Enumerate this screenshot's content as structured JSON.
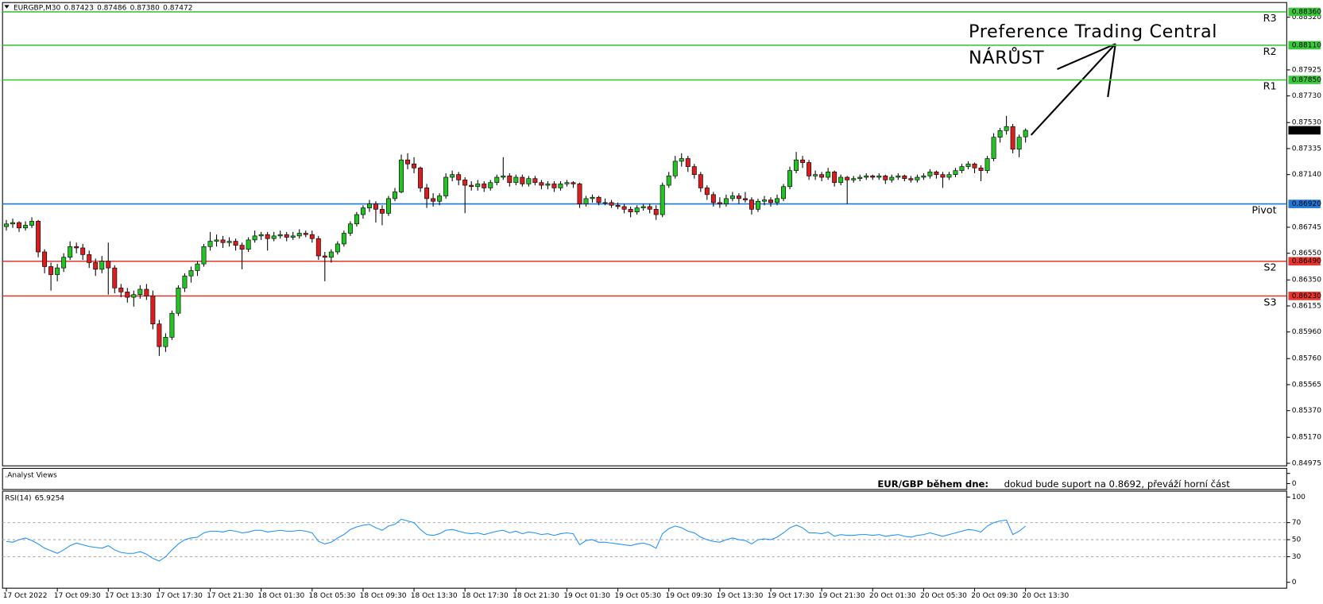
{
  "chart_data": {
    "type": "candlestick",
    "symbol": "EURGBP,M30",
    "header_prices": [
      "0.87423",
      "0.87486",
      "0.87380",
      "0.87472"
    ],
    "up_color": "#22c322",
    "down_color": "#d81e1e",
    "xlim": [
      -0.6,
      201
    ],
    "xticks": [
      {
        "value": 0,
        "label": "17 Oct 2022"
      },
      {
        "value": 8,
        "label": "17 Oct 09:30"
      },
      {
        "value": 16,
        "label": "17 Oct 13:30"
      },
      {
        "value": 24,
        "label": "17 Oct 17:30"
      },
      {
        "value": 32,
        "label": "17 Oct 21:30"
      },
      {
        "value": 40,
        "label": "18 Oct 01:30"
      },
      {
        "value": 48,
        "label": "18 Oct 05:30"
      },
      {
        "value": 56,
        "label": "18 Oct 09:30"
      },
      {
        "value": 64,
        "label": "18 Oct 13:30"
      },
      {
        "value": 72,
        "label": "18 Oct 17:30"
      },
      {
        "value": 80,
        "label": "18 Oct 21:30"
      },
      {
        "value": 88,
        "label": "19 Oct 01:30"
      },
      {
        "value": 96,
        "label": "19 Oct 05:30"
      },
      {
        "value": 104,
        "label": "19 Oct 09:30"
      },
      {
        "value": 112,
        "label": "19 Oct 13:30"
      },
      {
        "value": 120,
        "label": "19 Oct 17:30"
      },
      {
        "value": 128,
        "label": "19 Oct 21:30"
      },
      {
        "value": 136,
        "label": "20 Oct 01:30"
      },
      {
        "value": 144,
        "label": "20 Oct 05:30"
      },
      {
        "value": 152,
        "label": "20 Oct 09:30"
      },
      {
        "value": 160,
        "label": "20 Oct 13:30"
      }
    ],
    "ylim": [
      0.84956,
      0.8843
    ],
    "yticks": [
      {
        "value": 0.8832,
        "label": "0.88320"
      },
      0.87925,
      {
        "value": 0.8773,
        "label": "0.87730"
      },
      {
        "value": 0.8753,
        "label": "0.87530"
      },
      0.87335,
      {
        "value": 0.8714,
        "label": "0.87140"
      },
      0.86745,
      {
        "value": 0.8655,
        "label": "0.86550"
      },
      {
        "value": 0.8635,
        "label": "0.86350"
      },
      0.86155,
      {
        "value": 0.8596,
        "label": "0.85960"
      },
      {
        "value": 0.8576,
        "label": "0.85760"
      },
      0.85565,
      {
        "value": 0.8537,
        "label": "0.85370"
      },
      {
        "value": 0.8517,
        "label": "0.85170"
      },
      0.84975
    ],
    "levels": [
      {
        "name": "R3",
        "value": 0.8836,
        "label": "0.88360",
        "color": "#3cc83c"
      },
      {
        "name": "R2",
        "value": 0.8811,
        "label": "0.88110",
        "color": "#3cc83c"
      },
      {
        "name": "R1",
        "value": 0.8785,
        "label": "0.87850",
        "color": "#3cc83c"
      },
      {
        "name": "Pivot",
        "value": 0.8692,
        "label": "0.86920",
        "color": "#1e78d7"
      },
      {
        "name": "S2",
        "value": 0.8649,
        "label": "0.86490",
        "color": "#e8352e"
      },
      {
        "name": "S3",
        "value": 0.8623,
        "label": "0.86230",
        "color": "#e8352e"
      }
    ],
    "current_price": 0.87472,
    "annotation": [
      "Preference Trading Central",
      "NÁRŮST"
    ],
    "annotation_color": "#3cc83c",
    "ohlc": [
      [
        0.8675,
        0.868,
        0.8672,
        0.8677
      ],
      [
        0.8677,
        0.8681,
        0.8674,
        0.8678
      ],
      [
        0.8678,
        0.8679,
        0.8671,
        0.8674
      ],
      [
        0.8674,
        0.8679,
        0.8672,
        0.8676
      ],
      [
        0.8676,
        0.8682,
        0.8674,
        0.8679
      ],
      [
        0.8679,
        0.868,
        0.8652,
        0.8656
      ],
      [
        0.8656,
        0.8658,
        0.864,
        0.8645
      ],
      [
        0.8645,
        0.8648,
        0.8627,
        0.8639
      ],
      [
        0.8639,
        0.8647,
        0.8634,
        0.8644
      ],
      [
        0.8644,
        0.8655,
        0.8641,
        0.8652
      ],
      [
        0.8652,
        0.8664,
        0.865,
        0.866
      ],
      [
        0.866,
        0.8663,
        0.8655,
        0.8659
      ],
      [
        0.8659,
        0.8662,
        0.865,
        0.8654
      ],
      [
        0.8654,
        0.8657,
        0.8644,
        0.8648
      ],
      [
        0.8648,
        0.8651,
        0.8638,
        0.8643
      ],
      [
        0.8643,
        0.8653,
        0.864,
        0.8649
      ],
      [
        0.8649,
        0.8663,
        0.8624,
        0.8644
      ],
      [
        0.8644,
        0.8646,
        0.8625,
        0.8629
      ],
      [
        0.8629,
        0.8632,
        0.8622,
        0.8626
      ],
      [
        0.8626,
        0.8629,
        0.8618,
        0.8622
      ],
      [
        0.8622,
        0.8627,
        0.8615,
        0.8624
      ],
      [
        0.8624,
        0.8631,
        0.8621,
        0.8628
      ],
      [
        0.8628,
        0.8632,
        0.862,
        0.8623
      ],
      [
        0.8623,
        0.8627,
        0.8598,
        0.8602
      ],
      [
        0.8602,
        0.8605,
        0.8578,
        0.8585
      ],
      [
        0.8585,
        0.8595,
        0.8581,
        0.8592
      ],
      [
        0.8592,
        0.8612,
        0.859,
        0.861
      ],
      [
        0.861,
        0.8631,
        0.8608,
        0.8629
      ],
      [
        0.8629,
        0.864,
        0.8626,
        0.8638
      ],
      [
        0.8638,
        0.8645,
        0.8633,
        0.8642
      ],
      [
        0.8642,
        0.8649,
        0.8638,
        0.8647
      ],
      [
        0.8647,
        0.8662,
        0.8645,
        0.866
      ],
      [
        0.866,
        0.8671,
        0.8657,
        0.8664
      ],
      [
        0.8664,
        0.8669,
        0.866,
        0.8665
      ],
      [
        0.8665,
        0.8668,
        0.8659,
        0.8663
      ],
      [
        0.8663,
        0.8667,
        0.866,
        0.8664
      ],
      [
        0.8664,
        0.8666,
        0.8657,
        0.8661
      ],
      [
        0.8661,
        0.8663,
        0.8643,
        0.8658
      ],
      [
        0.8658,
        0.8667,
        0.8656,
        0.8665
      ],
      [
        0.8665,
        0.8672,
        0.8663,
        0.8668
      ],
      [
        0.8668,
        0.8671,
        0.8665,
        0.8669
      ],
      [
        0.8669,
        0.8671,
        0.8657,
        0.8666
      ],
      [
        0.8666,
        0.8671,
        0.8664,
        0.8668
      ],
      [
        0.8668,
        0.8672,
        0.8666,
        0.8669
      ],
      [
        0.8669,
        0.8671,
        0.8664,
        0.8667
      ],
      [
        0.8667,
        0.8671,
        0.8665,
        0.8668
      ],
      [
        0.8668,
        0.8673,
        0.8666,
        0.867
      ],
      [
        0.867,
        0.8672,
        0.8667,
        0.8669
      ],
      [
        0.8669,
        0.8672,
        0.8663,
        0.8666
      ],
      [
        0.8666,
        0.8668,
        0.865,
        0.8653
      ],
      [
        0.8653,
        0.8656,
        0.8634,
        0.8652
      ],
      [
        0.8652,
        0.8658,
        0.8648,
        0.8656
      ],
      [
        0.8656,
        0.8664,
        0.8654,
        0.8662
      ],
      [
        0.8662,
        0.8672,
        0.866,
        0.867
      ],
      [
        0.867,
        0.8679,
        0.8668,
        0.8677
      ],
      [
        0.8677,
        0.8686,
        0.8675,
        0.8684
      ],
      [
        0.8684,
        0.8691,
        0.8681,
        0.8689
      ],
      [
        0.8689,
        0.8695,
        0.8686,
        0.8692
      ],
      [
        0.8692,
        0.8694,
        0.8678,
        0.8688
      ],
      [
        0.8688,
        0.8691,
        0.8676,
        0.8685
      ],
      [
        0.8685,
        0.8698,
        0.8683,
        0.8696
      ],
      [
        0.8696,
        0.8704,
        0.8694,
        0.8701
      ],
      [
        0.8701,
        0.8729,
        0.87,
        0.8725
      ],
      [
        0.8725,
        0.873,
        0.8718,
        0.8722
      ],
      [
        0.8722,
        0.8727,
        0.8715,
        0.8719
      ],
      [
        0.8719,
        0.872,
        0.8701,
        0.8704
      ],
      [
        0.8704,
        0.8707,
        0.8689,
        0.8696
      ],
      [
        0.8696,
        0.87,
        0.869,
        0.8694
      ],
      [
        0.8694,
        0.87,
        0.8691,
        0.8698
      ],
      [
        0.8698,
        0.8715,
        0.8696,
        0.8712
      ],
      [
        0.8712,
        0.8717,
        0.8709,
        0.8714
      ],
      [
        0.8714,
        0.8716,
        0.8706,
        0.871
      ],
      [
        0.871,
        0.8712,
        0.8685,
        0.8706
      ],
      [
        0.8706,
        0.8709,
        0.8702,
        0.8705
      ],
      [
        0.8705,
        0.871,
        0.8702,
        0.8707
      ],
      [
        0.8707,
        0.8709,
        0.8701,
        0.8704
      ],
      [
        0.8704,
        0.871,
        0.8702,
        0.8708
      ],
      [
        0.8708,
        0.8714,
        0.8706,
        0.8712
      ],
      [
        0.8712,
        0.8727,
        0.871,
        0.8713
      ],
      [
        0.8713,
        0.8715,
        0.8705,
        0.8708
      ],
      [
        0.8708,
        0.8714,
        0.8706,
        0.8712
      ],
      [
        0.8712,
        0.8714,
        0.8705,
        0.8707
      ],
      [
        0.8707,
        0.8713,
        0.8705,
        0.8711
      ],
      [
        0.8711,
        0.8713,
        0.8706,
        0.8708
      ],
      [
        0.8708,
        0.871,
        0.8703,
        0.8706
      ],
      [
        0.8706,
        0.8709,
        0.8703,
        0.8707
      ],
      [
        0.8707,
        0.8709,
        0.8701,
        0.8704
      ],
      [
        0.8704,
        0.8709,
        0.8702,
        0.8707
      ],
      [
        0.8707,
        0.871,
        0.8705,
        0.8708
      ],
      [
        0.8708,
        0.8709,
        0.8704,
        0.8707
      ],
      [
        0.8707,
        0.8708,
        0.8689,
        0.8692
      ],
      [
        0.8692,
        0.8698,
        0.869,
        0.8696
      ],
      [
        0.8696,
        0.8699,
        0.8693,
        0.8697
      ],
      [
        0.8697,
        0.8698,
        0.8691,
        0.8693
      ],
      [
        0.8693,
        0.8696,
        0.8691,
        0.8693
      ],
      [
        0.8693,
        0.8695,
        0.8689,
        0.8691
      ],
      [
        0.8691,
        0.8693,
        0.8688,
        0.869
      ],
      [
        0.869,
        0.8692,
        0.8685,
        0.8688
      ],
      [
        0.8688,
        0.869,
        0.8682,
        0.8686
      ],
      [
        0.8686,
        0.8691,
        0.8684,
        0.8689
      ],
      [
        0.8689,
        0.8692,
        0.8687,
        0.869
      ],
      [
        0.869,
        0.8692,
        0.8685,
        0.8688
      ],
      [
        0.8688,
        0.8691,
        0.868,
        0.8684
      ],
      [
        0.8684,
        0.8708,
        0.8682,
        0.8706
      ],
      [
        0.8706,
        0.8716,
        0.8704,
        0.8713
      ],
      [
        0.8713,
        0.8728,
        0.8711,
        0.8724
      ],
      [
        0.8724,
        0.873,
        0.872,
        0.8726
      ],
      [
        0.8726,
        0.8728,
        0.8716,
        0.872
      ],
      [
        0.872,
        0.8722,
        0.8711,
        0.8714
      ],
      [
        0.8714,
        0.8716,
        0.8701,
        0.8704
      ],
      [
        0.8704,
        0.8706,
        0.8695,
        0.8699
      ],
      [
        0.8699,
        0.8701,
        0.869,
        0.8693
      ],
      [
        0.8693,
        0.8697,
        0.8689,
        0.8692
      ],
      [
        0.8692,
        0.8699,
        0.869,
        0.8696
      ],
      [
        0.8696,
        0.8701,
        0.8694,
        0.8698
      ],
      [
        0.8698,
        0.87,
        0.8692,
        0.8696
      ],
      [
        0.8696,
        0.8701,
        0.8693,
        0.8695
      ],
      [
        0.8695,
        0.8697,
        0.8684,
        0.8688
      ],
      [
        0.8688,
        0.8696,
        0.8686,
        0.8694
      ],
      [
        0.8694,
        0.8698,
        0.8691,
        0.8695
      ],
      [
        0.8695,
        0.8697,
        0.869,
        0.8693
      ],
      [
        0.8693,
        0.8699,
        0.8691,
        0.8696
      ],
      [
        0.8696,
        0.8707,
        0.8694,
        0.8705
      ],
      [
        0.8705,
        0.872,
        0.8703,
        0.8717
      ],
      [
        0.8717,
        0.8731,
        0.8715,
        0.8725
      ],
      [
        0.8725,
        0.8728,
        0.8719,
        0.8723
      ],
      [
        0.8723,
        0.8725,
        0.871,
        0.8713
      ],
      [
        0.8713,
        0.8717,
        0.871,
        0.8714
      ],
      [
        0.8714,
        0.8716,
        0.8709,
        0.8712
      ],
      [
        0.8712,
        0.8719,
        0.871,
        0.8716
      ],
      [
        0.8716,
        0.8717,
        0.8705,
        0.8708
      ],
      [
        0.8708,
        0.8714,
        0.8706,
        0.8712
      ],
      [
        0.8712,
        0.8713,
        0.8692,
        0.871
      ],
      [
        0.871,
        0.8713,
        0.8708,
        0.8711
      ],
      [
        0.8711,
        0.8714,
        0.8709,
        0.8712
      ],
      [
        0.8712,
        0.8715,
        0.871,
        0.8713
      ],
      [
        0.8713,
        0.8714,
        0.871,
        0.8712
      ],
      [
        0.8712,
        0.8715,
        0.871,
        0.8713
      ],
      [
        0.8713,
        0.8714,
        0.8707,
        0.871
      ],
      [
        0.871,
        0.8714,
        0.8708,
        0.8712
      ],
      [
        0.8712,
        0.8715,
        0.871,
        0.8713
      ],
      [
        0.8713,
        0.8714,
        0.8709,
        0.8711
      ],
      [
        0.8711,
        0.8713,
        0.8708,
        0.871
      ],
      [
        0.871,
        0.8714,
        0.8708,
        0.8712
      ],
      [
        0.8712,
        0.8715,
        0.871,
        0.8713
      ],
      [
        0.8713,
        0.8718,
        0.8711,
        0.8716
      ],
      [
        0.8716,
        0.8717,
        0.8711,
        0.8714
      ],
      [
        0.8714,
        0.8716,
        0.8704,
        0.8712
      ],
      [
        0.8712,
        0.8716,
        0.871,
        0.8714
      ],
      [
        0.8714,
        0.8719,
        0.8712,
        0.8717
      ],
      [
        0.8717,
        0.8722,
        0.8715,
        0.872
      ],
      [
        0.872,
        0.8724,
        0.8718,
        0.8722
      ],
      [
        0.8722,
        0.8723,
        0.8715,
        0.8719
      ],
      [
        0.8719,
        0.8721,
        0.8709,
        0.8717
      ],
      [
        0.8717,
        0.8728,
        0.8715,
        0.8726
      ],
      [
        0.8726,
        0.8745,
        0.8724,
        0.8742
      ],
      [
        0.8742,
        0.8749,
        0.8738,
        0.8747
      ],
      [
        0.8747,
        0.8758,
        0.8744,
        0.875
      ],
      [
        0.875,
        0.8752,
        0.873,
        0.8733
      ],
      [
        0.8733,
        0.8744,
        0.8727,
        0.8742
      ],
      [
        0.87423,
        0.87486,
        0.8738,
        0.87472
      ]
    ],
    "analyst": {
      "name": ".Analyst Views",
      "yticks": [
        0
      ],
      "heading": "EUR/GBP během dne:",
      "text": "dokud bude suport na 0.8692, převáží horní část",
      "color": "#ffc000"
    },
    "rsi": {
      "type": "line",
      "name": "RSI(14)",
      "color": "#1e90ff",
      "ylim": [
        0,
        100
      ],
      "yticks": [
        100,
        70,
        50,
        30,
        0
      ],
      "levels": [
        70,
        50,
        30
      ],
      "values": [
        48,
        47,
        50,
        52,
        49,
        45,
        40,
        37,
        34,
        38,
        43,
        46,
        44,
        42,
        41,
        40,
        43,
        38,
        35,
        34,
        34,
        36,
        33,
        28,
        25,
        30,
        38,
        45,
        50,
        52,
        53,
        58,
        60,
        60,
        59,
        61,
        60,
        58,
        59,
        61,
        61,
        59,
        60,
        61,
        60,
        60,
        61,
        60,
        58,
        48,
        45,
        47,
        52,
        56,
        62,
        65,
        67,
        68,
        64,
        61,
        66,
        68,
        74,
        72,
        70,
        62,
        56,
        55,
        57,
        61,
        62,
        60,
        58,
        57,
        58,
        56,
        58,
        60,
        61,
        58,
        60,
        57,
        59,
        58,
        56,
        57,
        55,
        57,
        58,
        57,
        44,
        49,
        50,
        47,
        47,
        46,
        45,
        44,
        43,
        45,
        46,
        44,
        40,
        57,
        63,
        66,
        64,
        60,
        58,
        53,
        50,
        48,
        47,
        50,
        52,
        50,
        49,
        45,
        50,
        51,
        50,
        53,
        58,
        64,
        67,
        64,
        58,
        58,
        57,
        59,
        54,
        56,
        55,
        55,
        56,
        56,
        55,
        56,
        54,
        55,
        56,
        54,
        53,
        55,
        56,
        58,
        56,
        54,
        56,
        58,
        60,
        62,
        61,
        59,
        66,
        70,
        72,
        73,
        56,
        60,
        65.9254
      ]
    }
  }
}
